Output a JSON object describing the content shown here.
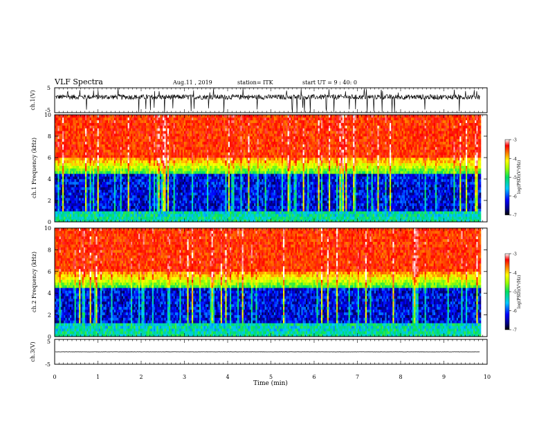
{
  "header": {
    "title": "VLF Spectra",
    "date": "Aug.11 , 2019",
    "station": "station= ITK",
    "start_ut": "start UT = 9 : 40: 0"
  },
  "chart_data": [
    {
      "type": "line",
      "panel": "ch1-waveform",
      "ylabel": "ch.1(V)",
      "ylim": [
        -5,
        5
      ],
      "yticks": [
        "5",
        "-5"
      ],
      "baseline": 1.3,
      "noise_amplitude": 1.0,
      "spikes": "frequent impulsive spikes to ±5 V"
    },
    {
      "type": "heatmap",
      "panel": "ch1-spectrogram",
      "ylabel": "ch.1 Frequency (kHz)",
      "ylim": [
        0,
        10
      ],
      "yticks": [
        "0",
        "2",
        "4",
        "6",
        "8",
        "10"
      ],
      "colorbar": {
        "label": "log(PSD)(V²/Hz)",
        "range": [
          -7,
          -3
        ],
        "ticks": [
          "-3",
          "-4",
          "-5",
          "-6",
          "-7"
        ]
      },
      "bands_khz": {
        "low_band_top": 1.0,
        "quiet_band_top": 4.5,
        "transition_top": 6.0
      }
    },
    {
      "type": "heatmap",
      "panel": "ch2-spectrogram",
      "ylabel": "ch.2 Frequency (kHz)",
      "ylim": [
        0,
        10
      ],
      "yticks": [
        "0",
        "2",
        "4",
        "6",
        "8",
        "10"
      ],
      "colorbar": {
        "label": "log(PSD)(V²/Hz)",
        "range": [
          -7,
          -3
        ],
        "ticks": [
          "-3",
          "-4",
          "-5",
          "-6",
          "-7"
        ]
      },
      "bands_khz": {
        "low_band_top": 1.2,
        "quiet_band_top": 4.5,
        "transition_top": 6.0
      }
    },
    {
      "type": "line",
      "panel": "ch3-waveform",
      "ylabel": "ch.3(V)",
      "ylim": [
        -5,
        5
      ],
      "yticks": [
        "5",
        "-5"
      ],
      "baseline": 0.0,
      "noise_amplitude": 0.05
    }
  ],
  "xaxis": {
    "label": "Time (min)",
    "xlim": [
      0,
      10
    ],
    "data_end": 9.83,
    "ticks": [
      "0",
      "1",
      "2",
      "3",
      "4",
      "5",
      "6",
      "7",
      "8",
      "9",
      "10"
    ]
  }
}
